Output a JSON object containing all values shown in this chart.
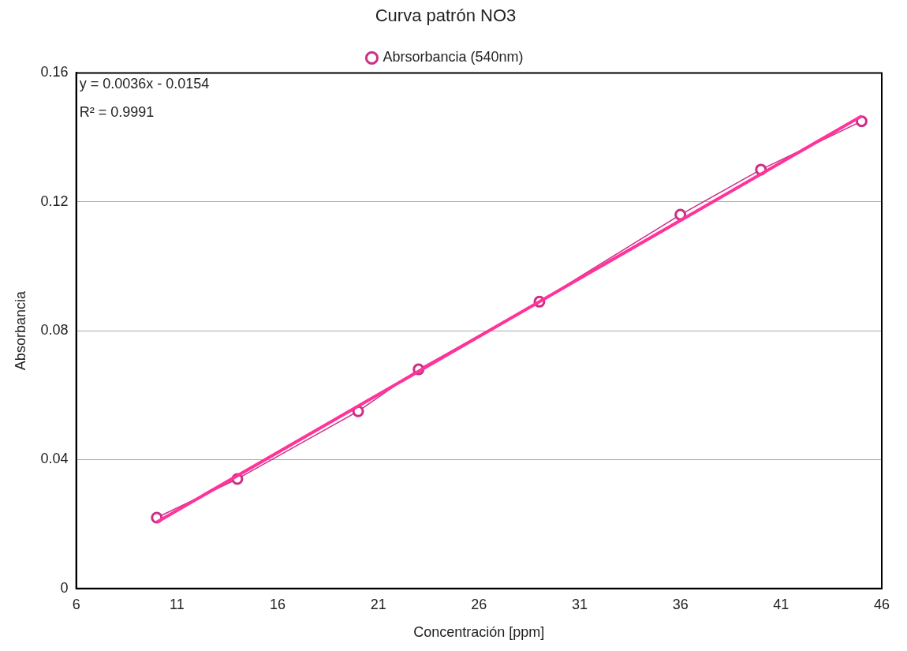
{
  "chart_data": {
    "type": "line",
    "title": "Curva patrón NO3",
    "xlabel": "Concentración [ppm]",
    "ylabel": "Absorbancia",
    "x": [
      10,
      14,
      20,
      23,
      29,
      36,
      40,
      45
    ],
    "series": [
      {
        "name": "Abrsorbancia (540nm)",
        "color": "#cc2f85",
        "values": [
          0.022,
          0.034,
          0.055,
          0.068,
          0.089,
          0.116,
          0.13,
          0.145
        ],
        "marker": "circle"
      },
      {
        "type": "line",
        "color": "#ff3399",
        "x": [
          10,
          45
        ],
        "values": [
          0.0206,
          0.1466
        ],
        "marker": "none"
      }
    ],
    "xlim": [
      6,
      46
    ],
    "xticks": [
      6,
      11,
      16,
      21,
      26,
      31,
      36,
      41,
      46
    ],
    "ylim": [
      0,
      0.16
    ],
    "yticks": [
      0,
      0.04,
      0.08,
      0.12,
      0.16
    ],
    "grid": "y",
    "legend": "top",
    "annotations": [
      "y = 0.0036x - 0.0154",
      "R² = 0.9991"
    ]
  }
}
